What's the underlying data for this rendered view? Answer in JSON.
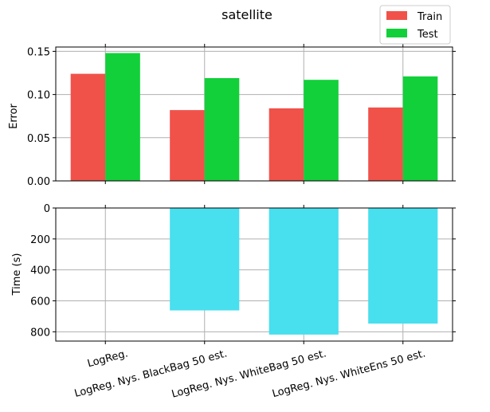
{
  "chart_data": [
    {
      "type": "bar",
      "title": "satellite",
      "xlabel": "",
      "ylabel": "Error",
      "ylim": [
        0,
        0.155
      ],
      "yticks": [
        0.0,
        0.05,
        0.1,
        0.15
      ],
      "ytick_labels": [
        "0.00",
        "0.05",
        "0.10",
        "0.15"
      ],
      "categories": [
        "LogReg.",
        "LogReg. Nys. BlackBag 50 est.",
        "LogReg. Nys. WhiteBag 50 est.",
        "LogReg. Nys. WhiteEns 50 est."
      ],
      "series": [
        {
          "name": "Train",
          "color": "#f0524a",
          "values": [
            0.124,
            0.082,
            0.084,
            0.085
          ]
        },
        {
          "name": "Test",
          "color": "#12d03a",
          "values": [
            0.148,
            0.119,
            0.117,
            0.121
          ]
        }
      ],
      "legend": {
        "position": "top-right",
        "entries": [
          "Train",
          "Test"
        ]
      },
      "grid": true
    },
    {
      "type": "bar",
      "xlabel": "",
      "ylabel": "Time (s)",
      "ylim": [
        0,
        860
      ],
      "y_inverted": true,
      "yticks": [
        0,
        200,
        400,
        600,
        800
      ],
      "ytick_labels": [
        "0",
        "200",
        "400",
        "600",
        "800"
      ],
      "categories": [
        "LogReg.",
        "LogReg. Nys. BlackBag 50 est.",
        "LogReg. Nys. WhiteBag 50 est.",
        "LogReg. Nys. WhiteEns 50 est."
      ],
      "series": [
        {
          "color": "#48dfee",
          "values": [
            2,
            662,
            818,
            747
          ]
        }
      ],
      "grid": true
    }
  ]
}
